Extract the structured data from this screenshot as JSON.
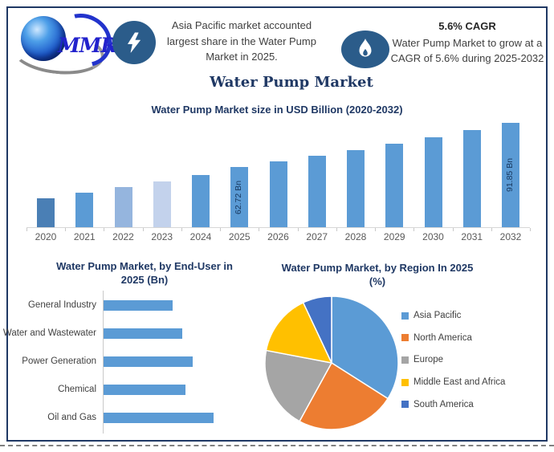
{
  "header": {
    "logo_text": "MMR",
    "callout1": {
      "icon": "lightning-icon",
      "text": "Asia Pacific market accounted largest share in the Water Pump Market in 2025."
    },
    "callout2": {
      "icon": "flame-icon",
      "heading": "5.6% CAGR",
      "text": "Water Pump Market to grow at a CAGR of 5.6% during 2025-2032"
    }
  },
  "main_title": "Water Pump Market",
  "colors": {
    "border_navy": "#1f3864",
    "title_navy": "#1f3864",
    "icon_blue": "#2b5c8a",
    "bar_blue": "#5b9bd5",
    "text_dark": "#3f3f3f"
  },
  "chart_data": [
    {
      "type": "bar",
      "title": "Water Pump Market size in USD Billion (2020-2032)",
      "unit": "USD Billion",
      "categories": [
        "2020",
        "2021",
        "2022",
        "2023",
        "2024",
        "2025",
        "2026",
        "2027",
        "2028",
        "2029",
        "2030",
        "2031",
        "2032"
      ],
      "values": [
        42.0,
        46.0,
        49.5,
        53.0,
        57.5,
        62.72,
        66.23,
        69.94,
        73.86,
        78.0,
        82.37,
        86.98,
        91.85
      ],
      "data_labels": [
        "",
        "",
        "",
        "",
        "",
        "62.72 Bn",
        "",
        "",
        "",
        "",
        "",
        "",
        "91.85 Bn"
      ],
      "bar_colors": [
        "#4a7fb5",
        "#5b9bd5",
        "#95b5de",
        "#c3d2ec",
        "#5b9bd5",
        "#5b9bd5",
        "#5b9bd5",
        "#5b9bd5",
        "#5b9bd5",
        "#5b9bd5",
        "#5b9bd5",
        "#5b9bd5",
        "#5b9bd5"
      ],
      "ylim": [
        23,
        95
      ],
      "grid": false,
      "legend": "none"
    },
    {
      "type": "bar",
      "orientation": "horizontal",
      "title": "Water Pump Market, by End-User in 2025 (Bn)",
      "categories": [
        "General Industry",
        "Water and Wastewater",
        "Power Generation",
        "Chemical",
        "Oil and Gas"
      ],
      "values": [
        10.6,
        12.1,
        13.6,
        12.5,
        16.8
      ],
      "bar_color": "#5b9bd5",
      "grid": false,
      "legend": "none"
    },
    {
      "type": "pie",
      "title": "Water Pump Market, by Region In 2025 (%)",
      "categories": [
        "Asia Pacific",
        "North America",
        "Europe",
        "Middle East and Africa",
        "South America"
      ],
      "values": [
        34,
        24,
        20,
        15,
        7
      ],
      "colors": [
        "#5b9bd5",
        "#ed7d31",
        "#a5a5a5",
        "#ffc000",
        "#4472c4"
      ],
      "legend_position": "right",
      "start_angle_deg": 0
    }
  ]
}
